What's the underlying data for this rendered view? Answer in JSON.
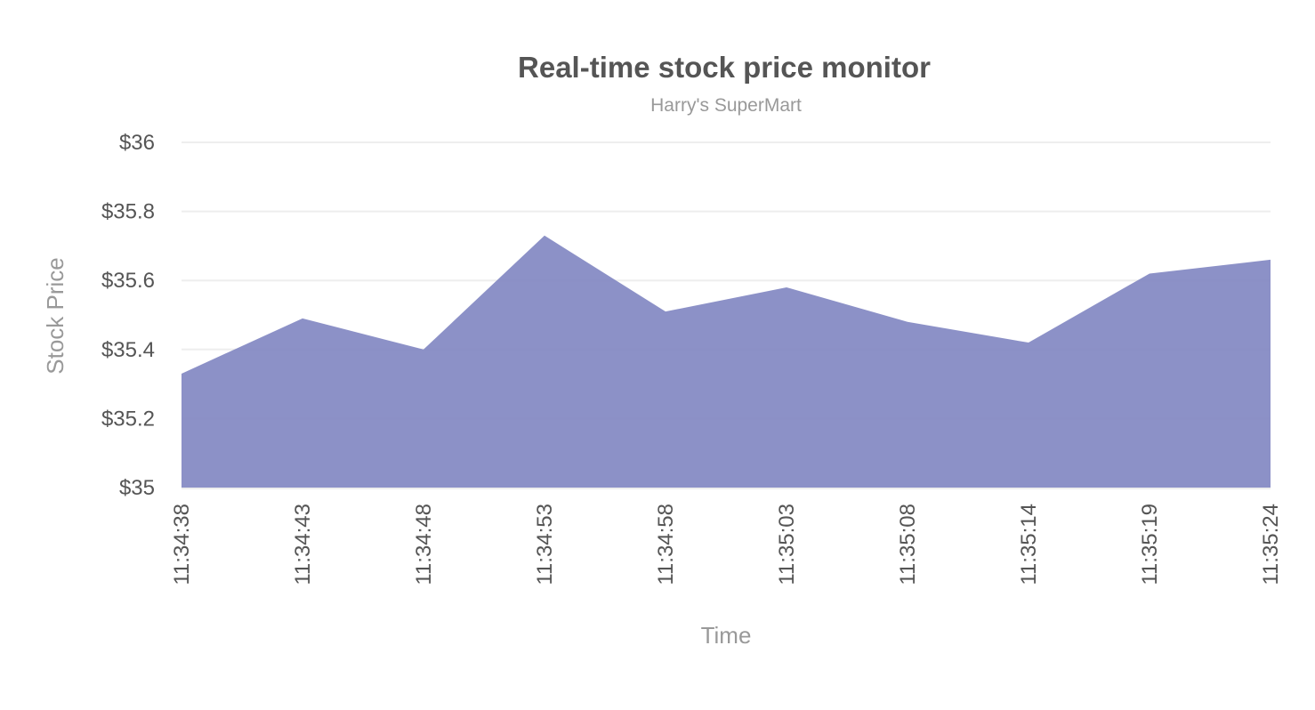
{
  "chart_data": {
    "type": "area",
    "title": "Real-time stock price monitor",
    "subtitle": "Harry's SuperMart",
    "xlabel": "Time",
    "ylabel": "Stock Price",
    "categories": [
      "11:34:38",
      "11:34:43",
      "11:34:48",
      "11:34:53",
      "11:34:58",
      "11:35:03",
      "11:35:08",
      "11:35:14",
      "11:35:19",
      "11:35:24"
    ],
    "series": [
      {
        "name": "Stock Price",
        "values": [
          35.33,
          35.49,
          35.4,
          35.73,
          35.51,
          35.58,
          35.48,
          35.42,
          35.62,
          35.66
        ],
        "color": "#8085c1"
      }
    ],
    "ylim": [
      35,
      36
    ],
    "yticks": [
      35,
      35.2,
      35.4,
      35.6,
      35.8,
      36
    ],
    "ytick_labels": [
      "$35",
      "$35.2",
      "$35.4",
      "$35.6",
      "$35.8",
      "$36"
    ],
    "grid": true,
    "legend": "none"
  },
  "colors": {
    "area_fill": "#8085c1",
    "area_opacity": 0.9,
    "grid": "#eeeeee",
    "title": "#555555",
    "subtitle": "#999999"
  }
}
